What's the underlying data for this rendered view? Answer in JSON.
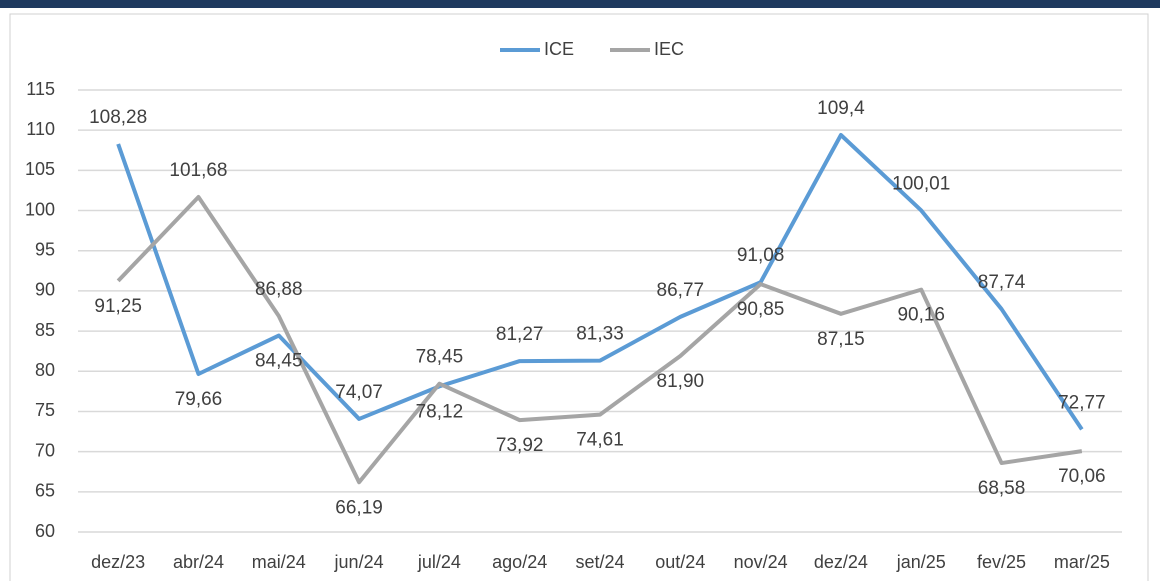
{
  "chart_data": {
    "type": "line",
    "categories": [
      "dez/23",
      "abr/24",
      "mai/24",
      "jun/24",
      "jul/24",
      "ago/24",
      "set/24",
      "out/24",
      "nov/24",
      "dez/24",
      "jan/25",
      "fev/25",
      "mar/25"
    ],
    "series": [
      {
        "name": "ICE",
        "color": "#5b9bd5",
        "values": [
          108.28,
          79.66,
          84.45,
          74.07,
          78.12,
          81.27,
          81.33,
          86.77,
          91.08,
          109.4,
          100.01,
          87.74,
          72.77
        ],
        "value_labels": [
          "108,28",
          "79,66",
          "84,45",
          "74,07",
          "78,12",
          "81,27",
          "81,33",
          "86,77",
          "91,08",
          "109,4",
          "100,01",
          "87,74",
          "72,77"
        ]
      },
      {
        "name": "IEC",
        "color": "#a5a5a5",
        "values": [
          91.25,
          101.68,
          86.88,
          66.19,
          78.45,
          73.92,
          74.61,
          81.9,
          90.85,
          87.15,
          90.16,
          68.58,
          70.06
        ],
        "value_labels": [
          "91,25",
          "101,68",
          "86,88",
          "66,19",
          "78,45",
          "73,92",
          "74,61",
          "81,90",
          "90,85",
          "87,15",
          "90,16",
          "68,58",
          "70,06"
        ]
      }
    ],
    "ylim": [
      60,
      115
    ],
    "yticks": [
      60,
      65,
      70,
      75,
      80,
      85,
      90,
      95,
      100,
      105,
      110,
      115
    ],
    "grid": true,
    "legend": "top"
  }
}
